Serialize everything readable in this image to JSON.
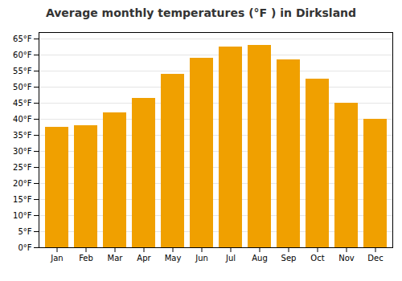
{
  "chart_data": {
    "type": "bar",
    "title": "Average monthly temperatures (°F ) in Dirksland",
    "categories": [
      "Jan",
      "Feb",
      "Mar",
      "Apr",
      "May",
      "Jun",
      "Jul",
      "Aug",
      "Sep",
      "Oct",
      "Nov",
      "Dec"
    ],
    "values": [
      37.5,
      38,
      42,
      46.5,
      54,
      59,
      62.5,
      63,
      58.5,
      52.5,
      45,
      40
    ],
    "color": "#F0A000",
    "ylim": [
      0,
      67
    ],
    "yticks": [
      {
        "value": 0,
        "label": "0°F"
      },
      {
        "value": 5,
        "label": "5°F"
      },
      {
        "value": 10,
        "label": "10°F"
      },
      {
        "value": 15,
        "label": "15°F"
      },
      {
        "value": 20,
        "label": "20°F"
      },
      {
        "value": 25,
        "label": "25°F"
      },
      {
        "value": 30,
        "label": "30°F"
      },
      {
        "value": 35,
        "label": "35°F"
      },
      {
        "value": 40,
        "label": "40°F"
      },
      {
        "value": 45,
        "label": "45°F"
      },
      {
        "value": 50,
        "label": "50°F"
      },
      {
        "value": 55,
        "label": "55°F"
      },
      {
        "value": 60,
        "label": "60°F"
      },
      {
        "value": 65,
        "label": "65°F"
      }
    ],
    "grid": true
  }
}
